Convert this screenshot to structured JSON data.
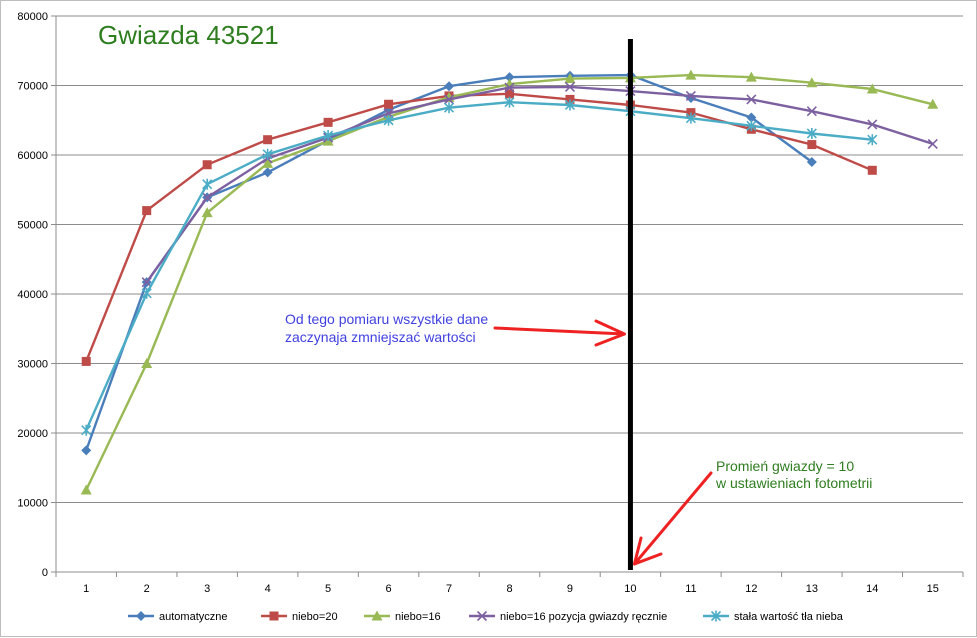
{
  "chart_data": {
    "type": "line",
    "title": "Gwiazda 43521",
    "title_color": "#2E7D1F",
    "x": [
      1,
      2,
      3,
      4,
      5,
      6,
      7,
      8,
      9,
      10,
      11,
      12,
      13,
      14,
      15
    ],
    "ylim": [
      0,
      80000
    ],
    "yticks": [
      0,
      10000,
      20000,
      30000,
      40000,
      50000,
      60000,
      70000,
      80000
    ],
    "grid": true,
    "legend_position": "bottom",
    "series": [
      {
        "name": "automatyczne",
        "color": "#4A7EBB",
        "marker": "diamond",
        "values": [
          17500,
          41700,
          53900,
          57500,
          62100,
          66500,
          69900,
          71200,
          71400,
          71500,
          68200,
          65400,
          59000,
          null,
          null
        ]
      },
      {
        "name": "niebo=20",
        "color": "#BE4B48",
        "marker": "square",
        "values": [
          30300,
          52000,
          58600,
          62200,
          64700,
          67300,
          68500,
          68800,
          68000,
          67200,
          66100,
          63700,
          61500,
          57800,
          null
        ]
      },
      {
        "name": "niebo=16",
        "color": "#98B954",
        "marker": "triangle",
        "values": [
          11800,
          30000,
          51700,
          58800,
          62000,
          65500,
          68300,
          70200,
          71000,
          71100,
          71500,
          71200,
          70400,
          69500,
          67300
        ]
      },
      {
        "name": "niebo=16 pozycja gwiazdy ręcznie",
        "color": "#7D60A0",
        "marker": "x",
        "values": [
          null,
          41700,
          53900,
          59500,
          62500,
          66000,
          68000,
          69700,
          69800,
          69200,
          68500,
          68000,
          66300,
          64400,
          61600
        ]
      },
      {
        "name": "stała wartość tła nieba",
        "color": "#4BACC6",
        "marker": "star",
        "values": [
          20400,
          40100,
          55800,
          60100,
          62800,
          65000,
          66800,
          67600,
          67200,
          66300,
          65300,
          64200,
          63100,
          62200,
          null
        ]
      }
    ],
    "vertical_marker_x": 10,
    "annotations": [
      {
        "text_lines": [
          "Od tego pomiaru wszystkie dane",
          "zaczynaja zmniejszać wartości"
        ],
        "color": "#4040E0"
      },
      {
        "text_lines": [
          "Promień gwiazdy = 10",
          "w ustawieniach fotometrii"
        ],
        "color": "#2E7D1F"
      }
    ],
    "arrow_color": "#EE2222"
  }
}
